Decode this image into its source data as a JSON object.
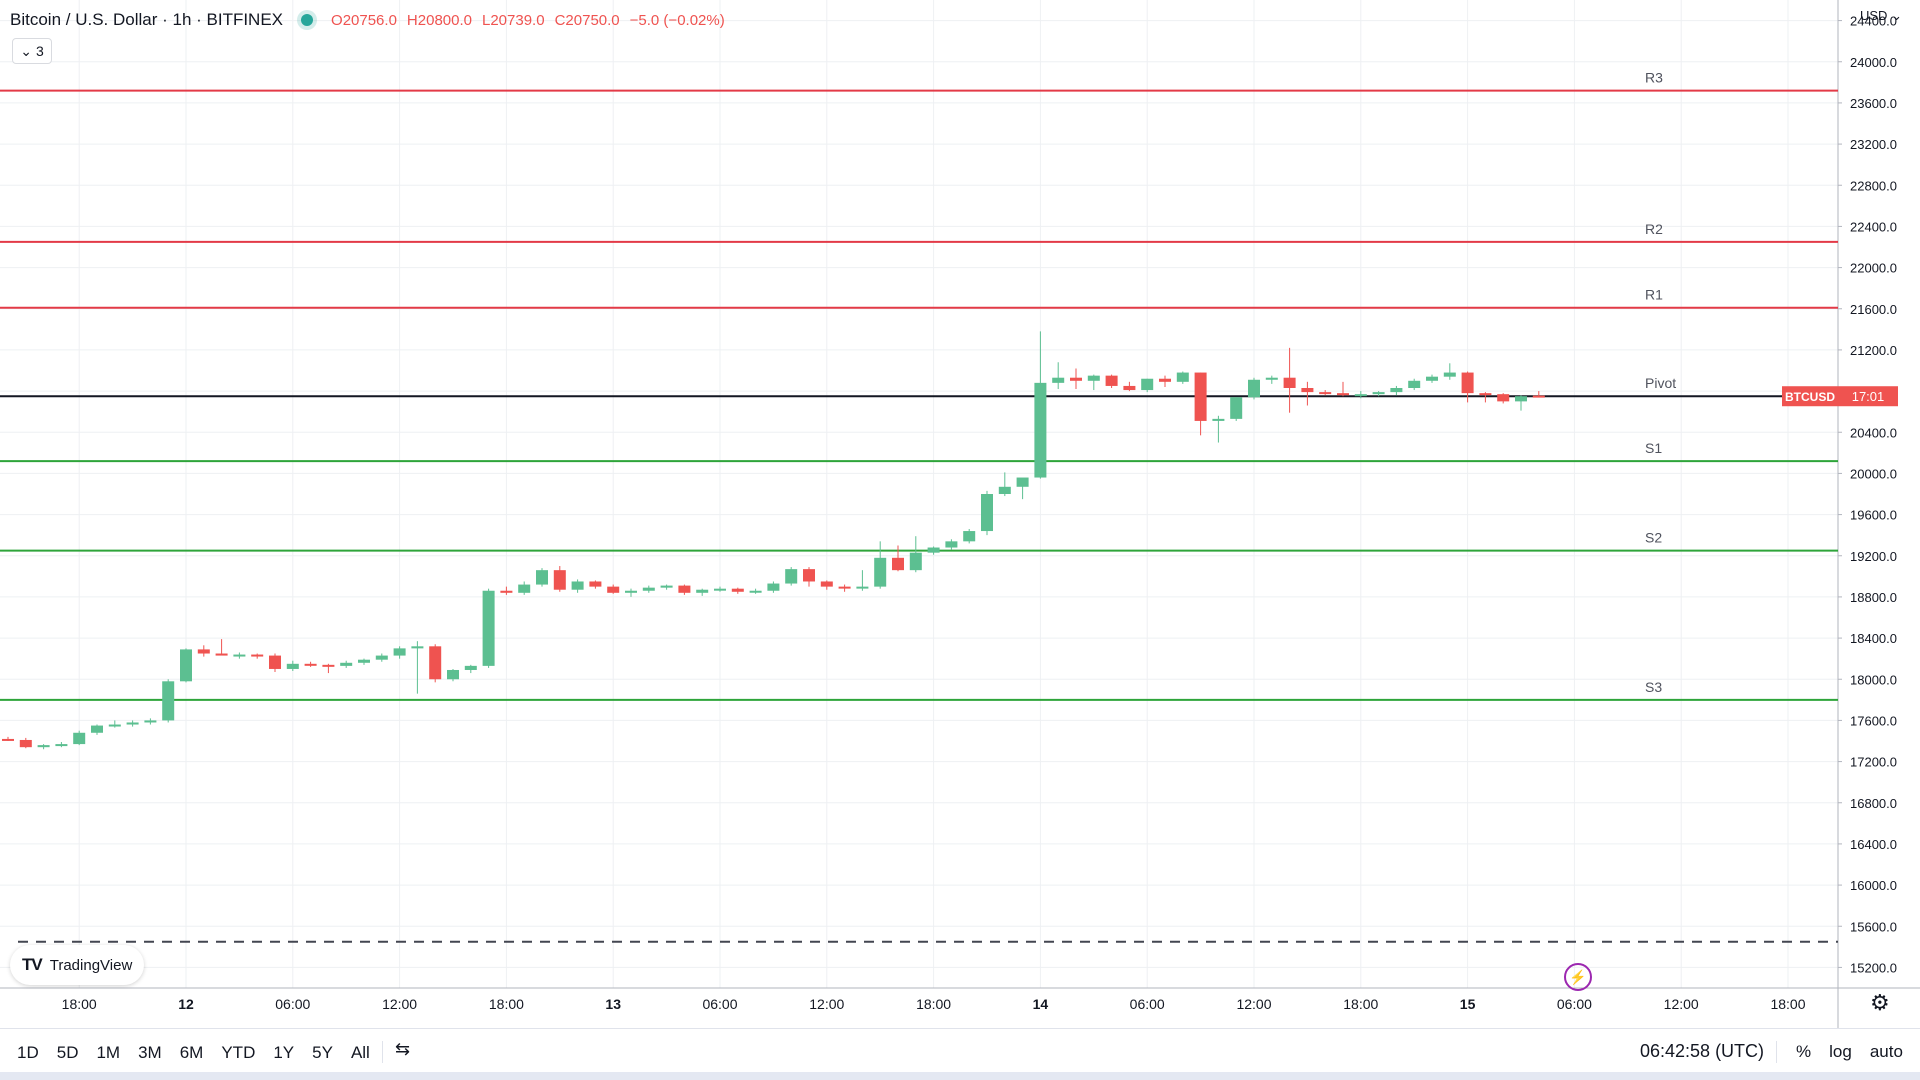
{
  "header": {
    "symbol_title": "Bitcoin / U.S. Dollar · 1h · BITFINEX",
    "ohlc": {
      "open_label": "O",
      "open": "20756.0",
      "high_label": "H",
      "high": "20800.0",
      "low_label": "L",
      "low": "20739.0",
      "close_label": "C",
      "close": "20750.0",
      "change": "−5.0 (−0.02%)"
    },
    "indicators_count": "3"
  },
  "currency_menu": "USD",
  "logo_text": "TradingView",
  "price_tag": {
    "symbol": "BTCUSD",
    "countdown": "17:01"
  },
  "bottombar": {
    "timeframes": [
      "1D",
      "5D",
      "1M",
      "3M",
      "6M",
      "YTD",
      "1Y",
      "5Y",
      "All"
    ],
    "clock": "06:42:58 (UTC)",
    "options": [
      "%",
      "log",
      "auto"
    ]
  },
  "colors": {
    "up": "#26a69a",
    "up_body": "#5cbf91",
    "down": "#ef5350",
    "resistance": "#e33a47",
    "support": "#2ea43a",
    "last_price_line": "#131722",
    "grid": "#eef0f3"
  },
  "icons": [
    "chevron-down-icon",
    "tradingview-logo-icon",
    "date-range-icon",
    "settings-gear-icon",
    "lightning-icon"
  ],
  "chart_data": {
    "type": "candlestick",
    "symbol": "BTCUSD",
    "interval": "1h",
    "exchange": "BITFINEX",
    "ylim": [
      15000,
      24600
    ],
    "y_ticks": [
      15200,
      15600,
      16000,
      16400,
      16800,
      17200,
      17600,
      18000,
      18400,
      18800,
      19200,
      19600,
      20000,
      20400,
      20800,
      21200,
      21600,
      22000,
      22400,
      22800,
      23200,
      23600,
      24000,
      24400
    ],
    "y_tick_labels": [
      "15200.0",
      "15600.0",
      "16000.0",
      "16400.0",
      "16800.0",
      "17200.0",
      "17600.0",
      "18000.0",
      "18400.0",
      "18800.0",
      "19200.0",
      "19600.0",
      "20000.0",
      "20400.0",
      "20800.0",
      "21200.0",
      "21600.0",
      "22000.0",
      "22400.0",
      "22800.0",
      "23200.0",
      "23600.0",
      "24000.0",
      "24400.0"
    ],
    "x_ticks": [
      {
        "label": "18:00",
        "bar": 4,
        "bold": false
      },
      {
        "label": "12",
        "bar": 10,
        "bold": true
      },
      {
        "label": "06:00",
        "bar": 16,
        "bold": false
      },
      {
        "label": "12:00",
        "bar": 22,
        "bold": false
      },
      {
        "label": "18:00",
        "bar": 28,
        "bold": false
      },
      {
        "label": "13",
        "bar": 34,
        "bold": true
      },
      {
        "label": "06:00",
        "bar": 40,
        "bold": false
      },
      {
        "label": "12:00",
        "bar": 46,
        "bold": false
      },
      {
        "label": "18:00",
        "bar": 52,
        "bold": false
      },
      {
        "label": "14",
        "bar": 58,
        "bold": true
      },
      {
        "label": "06:00",
        "bar": 64,
        "bold": false
      },
      {
        "label": "12:00",
        "bar": 70,
        "bold": false
      },
      {
        "label": "18:00",
        "bar": 76,
        "bold": false
      },
      {
        "label": "15",
        "bar": 82,
        "bold": true
      },
      {
        "label": "06:00",
        "bar": 88,
        "bold": false
      },
      {
        "label": "12:00",
        "bar": 94,
        "bold": false
      },
      {
        "label": "18:00",
        "bar": 100,
        "bold": false
      }
    ],
    "candles": [
      [
        17420,
        17440,
        17400,
        17410
      ],
      [
        17410,
        17430,
        17330,
        17340
      ],
      [
        17340,
        17370,
        17320,
        17360
      ],
      [
        17360,
        17390,
        17340,
        17370
      ],
      [
        17370,
        17500,
        17360,
        17480
      ],
      [
        17480,
        17560,
        17460,
        17550
      ],
      [
        17550,
        17600,
        17530,
        17560
      ],
      [
        17560,
        17600,
        17540,
        17580
      ],
      [
        17580,
        17620,
        17560,
        17600
      ],
      [
        17600,
        18000,
        17580,
        17980
      ],
      [
        17980,
        18300,
        17970,
        18290
      ],
      [
        18290,
        18330,
        18220,
        18250
      ],
      [
        18250,
        18390,
        18240,
        18230
      ],
      [
        18230,
        18260,
        18200,
        18240
      ],
      [
        18240,
        18250,
        18200,
        18230
      ],
      [
        18230,
        18250,
        18070,
        18100
      ],
      [
        18100,
        18180,
        18080,
        18150
      ],
      [
        18150,
        18170,
        18120,
        18140
      ],
      [
        18140,
        18150,
        18060,
        18130
      ],
      [
        18130,
        18180,
        18110,
        18160
      ],
      [
        18160,
        18200,
        18140,
        18190
      ],
      [
        18190,
        18250,
        18170,
        18230
      ],
      [
        18230,
        18320,
        18200,
        18300
      ],
      [
        18300,
        18370,
        17860,
        18320
      ],
      [
        18320,
        18340,
        17970,
        18000
      ],
      [
        18000,
        18100,
        17980,
        18090
      ],
      [
        18090,
        18140,
        18060,
        18130
      ],
      [
        18130,
        18880,
        18110,
        18860
      ],
      [
        18860,
        18900,
        18820,
        18840
      ],
      [
        18840,
        18950,
        18820,
        18920
      ],
      [
        18920,
        19080,
        18900,
        19060
      ],
      [
        19060,
        19100,
        18850,
        18870
      ],
      [
        18870,
        18970,
        18840,
        18950
      ],
      [
        18950,
        18960,
        18880,
        18900
      ],
      [
        18900,
        18920,
        18830,
        18840
      ],
      [
        18840,
        18880,
        18800,
        18860
      ],
      [
        18860,
        18910,
        18840,
        18890
      ],
      [
        18890,
        18920,
        18870,
        18910
      ],
      [
        18910,
        18920,
        18820,
        18840
      ],
      [
        18840,
        18880,
        18810,
        18870
      ],
      [
        18870,
        18900,
        18850,
        18880
      ],
      [
        18880,
        18890,
        18830,
        18850
      ],
      [
        18850,
        18880,
        18830,
        18860
      ],
      [
        18860,
        18950,
        18840,
        18930
      ],
      [
        18930,
        19090,
        18910,
        19070
      ],
      [
        19070,
        19090,
        18900,
        18950
      ],
      [
        18950,
        18960,
        18870,
        18900
      ],
      [
        18900,
        18920,
        18850,
        18890
      ],
      [
        18890,
        19060,
        18860,
        18900
      ],
      [
        18900,
        19340,
        18880,
        19180
      ],
      [
        19180,
        19300,
        19050,
        19060
      ],
      [
        19060,
        19390,
        19040,
        19230
      ],
      [
        19230,
        19290,
        19210,
        19280
      ],
      [
        19280,
        19360,
        19260,
        19340
      ],
      [
        19340,
        19460,
        19320,
        19440
      ],
      [
        19440,
        19830,
        19400,
        19800
      ],
      [
        19800,
        20010,
        19780,
        19870
      ],
      [
        19870,
        19950,
        19750,
        19960
      ],
      [
        19960,
        21380,
        19950,
        20880
      ],
      [
        20880,
        21080,
        20820,
        20930
      ],
      [
        20930,
        21020,
        20820,
        20900
      ],
      [
        20900,
        20960,
        20810,
        20950
      ],
      [
        20950,
        20960,
        20830,
        20850
      ],
      [
        20850,
        20890,
        20800,
        20810
      ],
      [
        20810,
        20920,
        20790,
        20920
      ],
      [
        20920,
        20950,
        20840,
        20890
      ],
      [
        20890,
        20990,
        20870,
        20980
      ],
      [
        20980,
        20980,
        20370,
        20510
      ],
      [
        20510,
        20560,
        20300,
        20530
      ],
      [
        20530,
        20740,
        20510,
        20740
      ],
      [
        20740,
        20930,
        20720,
        20910
      ],
      [
        20910,
        20950,
        20870,
        20930
      ],
      [
        20930,
        21220,
        20590,
        20830
      ],
      [
        20830,
        20890,
        20660,
        20790
      ],
      [
        20790,
        20810,
        20760,
        20780
      ],
      [
        20780,
        20890,
        20750,
        20760
      ],
      [
        20760,
        20800,
        20730,
        20770
      ],
      [
        20770,
        20800,
        20750,
        20790
      ],
      [
        20790,
        20850,
        20760,
        20830
      ],
      [
        20830,
        20920,
        20810,
        20900
      ],
      [
        20900,
        20960,
        20880,
        20940
      ],
      [
        20940,
        21070,
        20910,
        20980
      ],
      [
        20980,
        20990,
        20690,
        20780
      ],
      [
        20780,
        20790,
        20690,
        20770
      ],
      [
        20770,
        20780,
        20680,
        20700
      ],
      [
        20700,
        20760,
        20610,
        20750
      ],
      [
        20756,
        20800,
        20739,
        20750
      ]
    ],
    "pivot_levels": [
      {
        "name": "R3",
        "value": 23720
      },
      {
        "name": "R2",
        "value": 22250
      },
      {
        "name": "R1",
        "value": 21610
      },
      {
        "name": "Pivot",
        "value": 20750
      },
      {
        "name": "S1",
        "value": 20120
      },
      {
        "name": "S2",
        "value": 19250
      },
      {
        "name": "S3",
        "value": 17800
      }
    ],
    "last_price": 20750,
    "dashed_line_value": 15450
  }
}
